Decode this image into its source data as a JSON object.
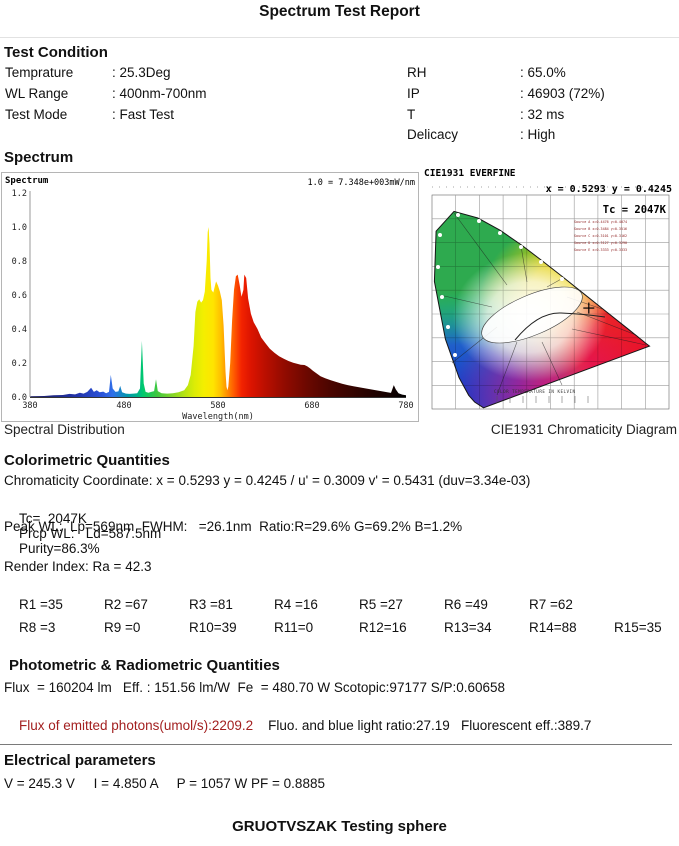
{
  "page": {
    "title": "Spectrum Test Report",
    "footer": "GRUOTVSZAK Testing sphere"
  },
  "test_condition": {
    "heading": "Test Condition",
    "left": [
      {
        "label": "Temprature",
        "value": ": 25.3Deg"
      },
      {
        "label": "WL Range",
        "value": ": 400nm-700nm"
      },
      {
        "label": "Test Mode",
        "value": ": Fast Test"
      }
    ],
    "right": [
      {
        "label": "RH",
        "value": ": 65.0%"
      },
      {
        "label": "IP",
        "value": ": 46903 (72%)"
      },
      {
        "label": "T",
        "value": ": 32 ms"
      },
      {
        "label": "Delicacy",
        "value": ": High"
      }
    ]
  },
  "spectrum_section": {
    "heading": "Spectrum",
    "caption_left": "Spectral Distribution",
    "caption_right": "CIE1931 Chromaticity Diagram"
  },
  "cie": {
    "title": "CIE1931  EVERFINE",
    "coord_label": "x = 0.5293 y = 0.4245",
    "tc_label": "Tc = 2047K",
    "bottom_label": "COLOR TEMPERATURE IN KELVIN",
    "sources": [
      "Source A x=0.4476 y=0.4074",
      "Source B x=0.3484 y=0.3516",
      "Source C x=0.3101 y=0.3162",
      "Source D x=0.3127 y=0.3290",
      "Source E x=0.3333 y=0.3333"
    ]
  },
  "chart_data": [
    {
      "type": "area",
      "title": "Spectrum",
      "scale_label": "1.0 = 7.348e+003mW/nm",
      "xlabel": "Wavelength(nm)",
      "xlim": [
        380,
        780
      ],
      "ylim": [
        0,
        1.2
      ],
      "x_ticks": [
        380,
        480,
        580,
        680,
        780
      ],
      "y_ticks": [
        0.0,
        0.2,
        0.4,
        0.6,
        0.8,
        1.0,
        1.2
      ],
      "grid": false,
      "points": [
        [
          380,
          0.004
        ],
        [
          395,
          0.006
        ],
        [
          405,
          0.01
        ],
        [
          415,
          0.012
        ],
        [
          422,
          0.018
        ],
        [
          428,
          0.015
        ],
        [
          433,
          0.025
        ],
        [
          437,
          0.02
        ],
        [
          441,
          0.03
        ],
        [
          445,
          0.055
        ],
        [
          448,
          0.03
        ],
        [
          451,
          0.04
        ],
        [
          454,
          0.028
        ],
        [
          458,
          0.032
        ],
        [
          461,
          0.022
        ],
        [
          464,
          0.03
        ],
        [
          466,
          0.13
        ],
        [
          468,
          0.05
        ],
        [
          471,
          0.03
        ],
        [
          474,
          0.033
        ],
        [
          476,
          0.065
        ],
        [
          478,
          0.028
        ],
        [
          482,
          0.02
        ],
        [
          486,
          0.018
        ],
        [
          490,
          0.02
        ],
        [
          494,
          0.022
        ],
        [
          497,
          0.05
        ],
        [
          499,
          0.33
        ],
        [
          501,
          0.08
        ],
        [
          503,
          0.03
        ],
        [
          506,
          0.025
        ],
        [
          509,
          0.03
        ],
        [
          512,
          0.035
        ],
        [
          514,
          0.105
        ],
        [
          516,
          0.035
        ],
        [
          520,
          0.022
        ],
        [
          526,
          0.02
        ],
        [
          532,
          0.022
        ],
        [
          538,
          0.028
        ],
        [
          544,
          0.04
        ],
        [
          548,
          0.07
        ],
        [
          551,
          0.13
        ],
        [
          554,
          0.3
        ],
        [
          556,
          0.5
        ],
        [
          558,
          0.56
        ],
        [
          560,
          0.575
        ],
        [
          562,
          0.555
        ],
        [
          564,
          0.57
        ],
        [
          566,
          0.62
        ],
        [
          568,
          0.8
        ],
        [
          569,
          0.97
        ],
        [
          570,
          1.0
        ],
        [
          571,
          0.9
        ],
        [
          572,
          0.7
        ],
        [
          573,
          0.63
        ],
        [
          575,
          0.615
        ],
        [
          577,
          0.66
        ],
        [
          578,
          0.68
        ],
        [
          580,
          0.655
        ],
        [
          582,
          0.62
        ],
        [
          584,
          0.57
        ],
        [
          586,
          0.42
        ],
        [
          588,
          0.15
        ],
        [
          589,
          0.06
        ],
        [
          590,
          0.04
        ],
        [
          591,
          0.06
        ],
        [
          593,
          0.2
        ],
        [
          595,
          0.45
        ],
        [
          597,
          0.63
        ],
        [
          599,
          0.71
        ],
        [
          601,
          0.72
        ],
        [
          603,
          0.66
        ],
        [
          605,
          0.59
        ],
        [
          607,
          0.63
        ],
        [
          608,
          0.72
        ],
        [
          610,
          0.7
        ],
        [
          612,
          0.58
        ],
        [
          615,
          0.49
        ],
        [
          618,
          0.44
        ],
        [
          622,
          0.4
        ],
        [
          626,
          0.35
        ],
        [
          630,
          0.32
        ],
        [
          635,
          0.285
        ],
        [
          640,
          0.26
        ],
        [
          645,
          0.24
        ],
        [
          650,
          0.225
        ],
        [
          655,
          0.212
        ],
        [
          660,
          0.202
        ],
        [
          664,
          0.196
        ],
        [
          668,
          0.19
        ],
        [
          672,
          0.188
        ],
        [
          675,
          0.18
        ],
        [
          678,
          0.168
        ],
        [
          681,
          0.155
        ],
        [
          685,
          0.138
        ],
        [
          689,
          0.122
        ],
        [
          694,
          0.11
        ],
        [
          700,
          0.098
        ],
        [
          706,
          0.088
        ],
        [
          712,
          0.078
        ],
        [
          718,
          0.07
        ],
        [
          724,
          0.063
        ],
        [
          730,
          0.057
        ],
        [
          736,
          0.051
        ],
        [
          742,
          0.046
        ],
        [
          748,
          0.04
        ],
        [
          754,
          0.034
        ],
        [
          760,
          0.028
        ],
        [
          764,
          0.024
        ],
        [
          767,
          0.07
        ],
        [
          769,
          0.045
        ],
        [
          772,
          0.022
        ],
        [
          776,
          0.014
        ],
        [
          780,
          0.01
        ]
      ],
      "color_stops": [
        {
          "pos": 0.0,
          "color": "#1b1b5e"
        },
        {
          "pos": 0.125,
          "color": "#2233aa"
        },
        {
          "pos": 0.19,
          "color": "#2a52d8"
        },
        {
          "pos": 0.22,
          "color": "#2f6fe8"
        },
        {
          "pos": 0.26,
          "color": "#0099aa"
        },
        {
          "pos": 0.2875,
          "color": "#00b487"
        },
        {
          "pos": 0.3,
          "color": "#00c96e"
        },
        {
          "pos": 0.3375,
          "color": "#3fc840"
        },
        {
          "pos": 0.375,
          "color": "#7ed32b"
        },
        {
          "pos": 0.4125,
          "color": "#b8e412"
        },
        {
          "pos": 0.4375,
          "color": "#dcec06"
        },
        {
          "pos": 0.4625,
          "color": "#f4ee00"
        },
        {
          "pos": 0.4875,
          "color": "#ffe400"
        },
        {
          "pos": 0.5075,
          "color": "#ffbf00"
        },
        {
          "pos": 0.525,
          "color": "#ff8c00"
        },
        {
          "pos": 0.5425,
          "color": "#ff5a00"
        },
        {
          "pos": 0.5625,
          "color": "#f32300"
        },
        {
          "pos": 0.5875,
          "color": "#dc1400"
        },
        {
          "pos": 0.625,
          "color": "#bb0f00"
        },
        {
          "pos": 0.675,
          "color": "#930b00"
        },
        {
          "pos": 0.7375,
          "color": "#6b0800"
        },
        {
          "pos": 0.8,
          "color": "#4a0500"
        },
        {
          "pos": 0.875,
          "color": "#2e0300"
        },
        {
          "pos": 0.95,
          "color": "#150100"
        },
        {
          "pos": 1.0,
          "color": "#000000"
        }
      ]
    },
    {
      "type": "scatter",
      "title": "CIE1931 Chromaticity Diagram",
      "points": [
        {
          "x": 0.5293,
          "y": 0.4245
        }
      ],
      "tc": "2047K",
      "xlabel": "x",
      "ylabel": "y"
    }
  ],
  "colorimetric": {
    "heading": "Colorimetric Quantities",
    "line1": "Chromaticity Coordinate: x = 0.5293 y = 0.4245 / u' = 0.3009 v' = 0.5431 (duv=3.34e-03)",
    "tc": "Tc=  2047K",
    "prcp": "Prcp WL:   Ld=587.5nm",
    "purity": "Purity=86.3%",
    "peak_line": "Peak WL:  Lp=569nm  FWHM:   =26.1nm  Ratio:R=29.6% G=69.2% B=1.2%"
  },
  "render_index": {
    "heading": "Render Index: Ra = 42.3",
    "rows": [
      [
        "R1 =35",
        "R2 =67",
        "R3 =81",
        "R4 =16",
        "R5 =27",
        "R6 =49",
        "R7 =62"
      ],
      [
        "R8 =3",
        "R9 =0",
        "R10=39",
        "R11=0",
        "R12=16",
        "R13=34",
        "R14=88",
        "R15=35"
      ]
    ]
  },
  "photometric": {
    "heading": "Photometric & Radiometric Quantities",
    "line1": "Flux  = 160204 lm   Eff. : 151.56 lm/W  Fe  = 480.70 W Scotopic:97177 S/P:0.60658",
    "red_text": "Flux of emitted photons(umol/s):2209.2",
    "line2_rest": "    Fluo. and blue light ratio:27.19   Fluorescent eff.:389.7"
  },
  "electrical": {
    "heading": "Electrical parameters",
    "line1": "V = 245.3 V     I = 4.850 A     P = 1057 W PF = 0.8885"
  },
  "colors": {
    "red_text": "#a32020",
    "accent_black": "#111111"
  }
}
